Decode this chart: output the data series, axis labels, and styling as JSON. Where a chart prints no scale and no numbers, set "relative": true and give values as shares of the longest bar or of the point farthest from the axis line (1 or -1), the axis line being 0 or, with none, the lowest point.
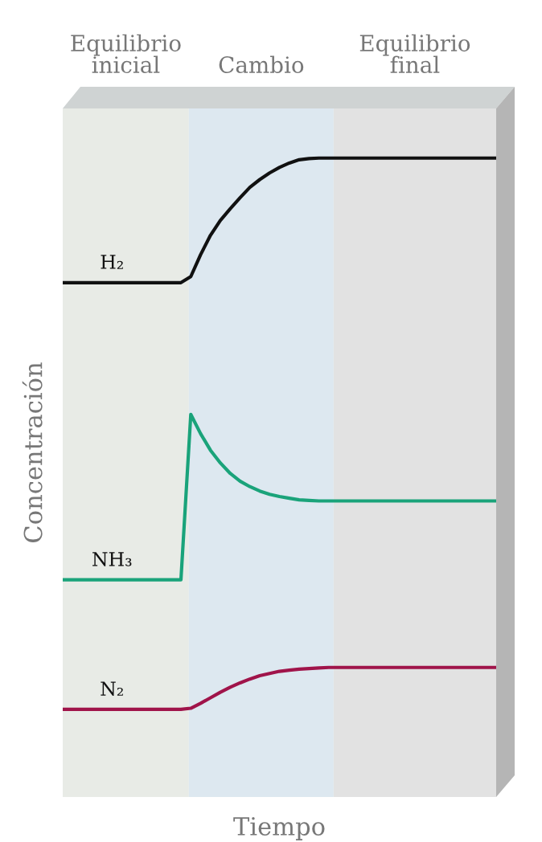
{
  "chart_data": {
    "type": "line",
    "relative": true,
    "xlabel": "Tiempo",
    "ylabel": "Concentración",
    "marker": "none",
    "line_style": "solid",
    "categories": [
      null,
      null,
      null,
      null,
      null,
      null,
      null,
      null,
      null,
      null,
      null,
      null,
      null,
      null,
      null,
      null,
      null,
      null,
      null,
      null,
      null,
      null,
      null,
      null,
      null,
      null,
      null,
      null,
      null,
      null,
      null,
      null,
      null,
      null,
      null,
      null,
      null,
      null,
      null,
      null,
      null,
      null,
      null,
      null,
      null
    ],
    "series": [
      {
        "name": "H₂",
        "color": "#111111",
        "values": [
          0.774,
          0.774,
          0.774,
          0.774,
          0.774,
          0.774,
          0.774,
          0.774,
          0.774,
          0.774,
          0.774,
          0.774,
          0.774,
          0.785,
          0.825,
          0.86,
          0.887,
          0.908,
          0.928,
          0.947,
          0.961,
          0.973,
          0.983,
          0.991,
          0.997,
          0.999,
          1,
          1,
          1,
          1,
          1,
          1,
          1,
          1,
          1,
          1,
          1,
          1,
          1,
          1,
          1,
          1,
          1,
          1,
          1
        ]
      },
      {
        "name": "NH₃",
        "color": "#1aa37a",
        "values": [
          0.235,
          0.235,
          0.235,
          0.235,
          0.235,
          0.235,
          0.235,
          0.235,
          0.235,
          0.235,
          0.235,
          0.235,
          0.235,
          0.535,
          0.5,
          0.47,
          0.447,
          0.428,
          0.414,
          0.404,
          0.396,
          0.39,
          0.386,
          0.383,
          0.38,
          0.379,
          0.378,
          0.378,
          0.378,
          0.378,
          0.378,
          0.378,
          0.378,
          0.378,
          0.378,
          0.378,
          0.378,
          0.378,
          0.378,
          0.378,
          0.378,
          0.378,
          0.378,
          0.378,
          0.378
        ]
      },
      {
        "name": "N₂",
        "color": "#a0144a",
        "values": [
          0,
          0,
          0,
          0,
          0,
          0,
          0,
          0,
          0,
          0,
          0,
          0,
          0,
          0.002,
          0.011,
          0.021,
          0.031,
          0.04,
          0.048,
          0.055,
          0.061,
          0.065,
          0.069,
          0.071,
          0.073,
          0.074,
          0.075,
          0.076,
          0.076,
          0.076,
          0.076,
          0.076,
          0.076,
          0.076,
          0.076,
          0.076,
          0.076,
          0.076,
          0.076,
          0.076,
          0.076,
          0.076,
          0.076,
          0.076,
          0.076
        ]
      }
    ],
    "annotations": [
      "Equilibrio\ninicial",
      "Cambio",
      "Equilibrio\nfinal"
    ]
  }
}
